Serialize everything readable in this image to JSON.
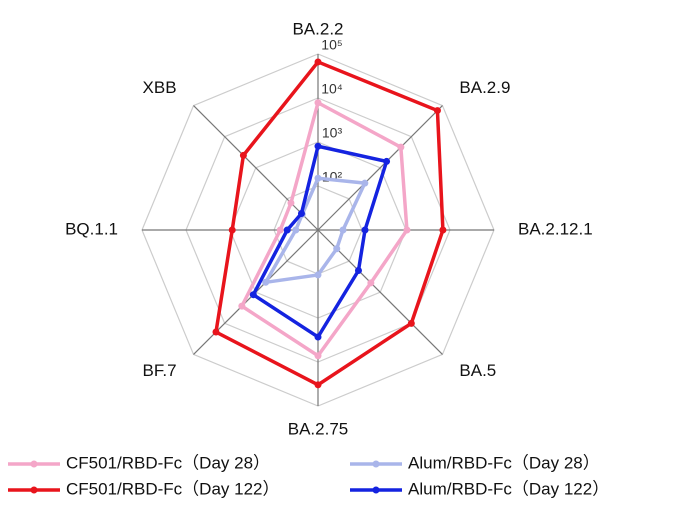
{
  "chart_data": {
    "type": "radar",
    "categories": [
      "BA.2.2",
      "BA.2.9",
      "BA.2.12.1",
      "BA.5",
      "BA.2.75",
      "BF.7",
      "BQ.1.1",
      "XBB"
    ],
    "log_scale": true,
    "ylim": [
      10,
      100000
    ],
    "yticks": [
      {
        "value": 100,
        "label": "10²"
      },
      {
        "value": 1000,
        "label": "10³"
      },
      {
        "value": 10000,
        "label": "10⁴"
      },
      {
        "value": 100000,
        "label": "10⁵"
      }
    ],
    "grid": true,
    "legend": "bottom",
    "series": [
      {
        "name": "CF501/RBD-Fc（Day 28）",
        "color": "#f4a6c8",
        "values": [
          7800,
          4600,
          1050,
          500,
          7200,
          2800,
          72,
          74
        ]
      },
      {
        "name": "Alum/RBD-Fc（Day 28）",
        "color": "#a9b5ea",
        "values": [
          150,
          320,
          37,
          40,
          105,
          480,
          32,
          32
        ]
      },
      {
        "name": "CF501/RBD-Fc（Day 122）",
        "color": "#e8141c",
        "values": [
          66000,
          69000,
          6900,
          10000,
          33000,
          19000,
          890,
          2500
        ]
      },
      {
        "name": "Alum/RBD-Fc（Day 122）",
        "color": "#1423e0",
        "values": [
          800,
          1600,
          117,
          200,
          2700,
          1200,
          50,
          34
        ]
      }
    ]
  }
}
